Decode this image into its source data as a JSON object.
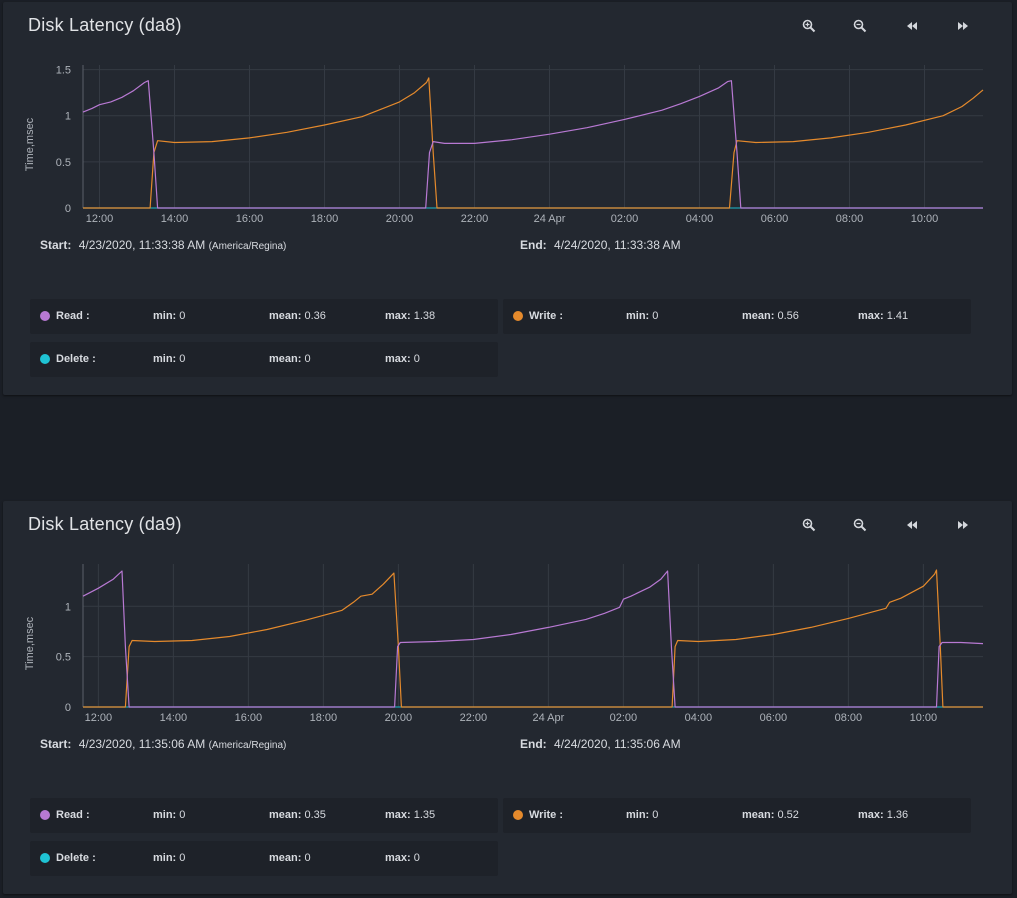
{
  "colors": {
    "read": "#b879d3",
    "write": "#e58a2c",
    "delete": "#1fc3d4",
    "delete_line": "#1e9fb0",
    "grid": "#343a43",
    "axis_text": "#aeb3ba"
  },
  "toolbar": {
    "icons": [
      "zoom-in-icon",
      "zoom-out-icon",
      "rewind-icon",
      "fast-forward-icon"
    ]
  },
  "stat_labels": {
    "min": "min:",
    "mean": "mean:",
    "max": "max:"
  },
  "panels": [
    {
      "title": "Disk Latency (da8)",
      "start_label": "Start:",
      "start_value": "4/23/2020, 11:33:38 AM",
      "timezone": "(America/Regina)",
      "end_label": "End:",
      "end_value": "4/24/2020, 11:33:38 AM",
      "legend": [
        {
          "name": "Read :",
          "color": "#b879d3",
          "min": "0",
          "mean": "0.36",
          "max": "1.38"
        },
        {
          "name": "Write :",
          "color": "#e58a2c",
          "min": "0",
          "mean": "0.56",
          "max": "1.41"
        },
        {
          "name": "Delete :",
          "color": "#1fc3d4",
          "min": "0",
          "mean": "0",
          "max": "0"
        }
      ]
    },
    {
      "title": "Disk Latency (da9)",
      "start_label": "Start:",
      "start_value": "4/23/2020, 11:35:06 AM",
      "timezone": "(America/Regina)",
      "end_label": "End:",
      "end_value": "4/24/2020, 11:35:06 AM",
      "legend": [
        {
          "name": "Read :",
          "color": "#b879d3",
          "min": "0",
          "mean": "0.35",
          "max": "1.35"
        },
        {
          "name": "Write :",
          "color": "#e58a2c",
          "min": "0",
          "mean": "0.52",
          "max": "1.36"
        },
        {
          "name": "Delete :",
          "color": "#1fc3d4",
          "min": "0",
          "mean": "0",
          "max": "0"
        }
      ]
    }
  ],
  "chart_data": [
    {
      "type": "line",
      "title": "Disk Latency (da8)",
      "ylabel": "Time,msec",
      "xlim": [
        11.56,
        35.56
      ],
      "ylim": [
        0,
        1.55
      ],
      "yticks": [
        0,
        0.5,
        1,
        1.5
      ],
      "ytick_labels": [
        "0",
        "0.5",
        "1",
        "1.5"
      ],
      "xticks": [
        12,
        14,
        16,
        18,
        20,
        22,
        24,
        26,
        28,
        30,
        32,
        34
      ],
      "xtick_labels": [
        "12:00",
        "14:00",
        "16:00",
        "18:00",
        "20:00",
        "22:00",
        "24 Apr",
        "02:00",
        "04:00",
        "06:00",
        "08:00",
        "10:00"
      ],
      "grid": true,
      "series": [
        {
          "name": "Read",
          "color": "#b879d3",
          "points": [
            [
              11.56,
              1.04
            ],
            [
              11.8,
              1.08
            ],
            [
              12.0,
              1.12
            ],
            [
              12.3,
              1.15
            ],
            [
              12.6,
              1.2
            ],
            [
              12.9,
              1.27
            ],
            [
              13.2,
              1.36
            ],
            [
              13.3,
              1.38
            ],
            [
              13.45,
              0.6
            ],
            [
              13.55,
              0
            ],
            [
              20.7,
              0
            ],
            [
              20.8,
              0.6
            ],
            [
              20.9,
              0.72
            ],
            [
              21.2,
              0.7
            ],
            [
              22.0,
              0.7
            ],
            [
              23.0,
              0.74
            ],
            [
              24.0,
              0.8
            ],
            [
              25.0,
              0.87
            ],
            [
              26.0,
              0.96
            ],
            [
              27.0,
              1.06
            ],
            [
              27.5,
              1.13
            ],
            [
              28.0,
              1.21
            ],
            [
              28.5,
              1.3
            ],
            [
              28.75,
              1.37
            ],
            [
              28.85,
              1.38
            ],
            [
              29.0,
              0.6
            ],
            [
              29.1,
              0
            ],
            [
              35.56,
              0
            ]
          ]
        },
        {
          "name": "Write",
          "color": "#e58a2c",
          "points": [
            [
              11.56,
              0
            ],
            [
              13.35,
              0
            ],
            [
              13.45,
              0.6
            ],
            [
              13.55,
              0.73
            ],
            [
              14.0,
              0.71
            ],
            [
              15.0,
              0.72
            ],
            [
              16.0,
              0.76
            ],
            [
              17.0,
              0.82
            ],
            [
              18.0,
              0.9
            ],
            [
              19.0,
              0.99
            ],
            [
              19.5,
              1.07
            ],
            [
              20.0,
              1.15
            ],
            [
              20.4,
              1.25
            ],
            [
              20.72,
              1.36
            ],
            [
              20.78,
              1.41
            ],
            [
              20.9,
              0.6
            ],
            [
              21.0,
              0
            ],
            [
              28.8,
              0
            ],
            [
              28.92,
              0.6
            ],
            [
              29.0,
              0.73
            ],
            [
              29.5,
              0.71
            ],
            [
              30.5,
              0.72
            ],
            [
              31.5,
              0.76
            ],
            [
              32.5,
              0.82
            ],
            [
              33.5,
              0.9
            ],
            [
              34.5,
              1.0
            ],
            [
              35.0,
              1.1
            ],
            [
              35.3,
              1.19
            ],
            [
              35.56,
              1.28
            ]
          ]
        },
        {
          "name": "Delete",
          "color": "#1fc3d4",
          "points": [
            [
              11.56,
              0
            ],
            [
              35.56,
              0
            ]
          ]
        }
      ]
    },
    {
      "type": "line",
      "title": "Disk Latency (da9)",
      "ylabel": "Time,msec",
      "xlim": [
        11.59,
        35.59
      ],
      "ylim": [
        0,
        1.42
      ],
      "yticks": [
        0,
        0.5,
        1
      ],
      "ytick_labels": [
        "0",
        "0.5",
        "1"
      ],
      "xticks": [
        12,
        14,
        16,
        18,
        20,
        22,
        24,
        26,
        28,
        30,
        32,
        34
      ],
      "xtick_labels": [
        "12:00",
        "14:00",
        "16:00",
        "18:00",
        "20:00",
        "22:00",
        "24 Apr",
        "02:00",
        "04:00",
        "06:00",
        "08:00",
        "10:00"
      ],
      "grid": true,
      "series": [
        {
          "name": "Read",
          "color": "#b879d3",
          "points": [
            [
              11.59,
              1.1
            ],
            [
              12.0,
              1.18
            ],
            [
              12.4,
              1.27
            ],
            [
              12.63,
              1.35
            ],
            [
              12.72,
              0.6
            ],
            [
              12.82,
              0
            ],
            [
              19.9,
              0
            ],
            [
              19.98,
              0.6
            ],
            [
              20.05,
              0.64
            ],
            [
              21.0,
              0.65
            ],
            [
              22.0,
              0.67
            ],
            [
              23.0,
              0.72
            ],
            [
              24.0,
              0.79
            ],
            [
              25.0,
              0.87
            ],
            [
              25.5,
              0.93
            ],
            [
              25.9,
              0.99
            ],
            [
              26.0,
              1.07
            ],
            [
              26.2,
              1.1
            ],
            [
              26.7,
              1.19
            ],
            [
              27.0,
              1.27
            ],
            [
              27.18,
              1.35
            ],
            [
              27.28,
              0.6
            ],
            [
              27.38,
              0
            ],
            [
              34.35,
              0
            ],
            [
              34.42,
              0.6
            ],
            [
              34.5,
              0.64
            ],
            [
              35.0,
              0.64
            ],
            [
              35.59,
              0.63
            ]
          ]
        },
        {
          "name": "Write",
          "color": "#e58a2c",
          "points": [
            [
              11.59,
              0
            ],
            [
              12.72,
              0
            ],
            [
              12.82,
              0.6
            ],
            [
              12.9,
              0.66
            ],
            [
              13.5,
              0.65
            ],
            [
              14.5,
              0.66
            ],
            [
              15.5,
              0.7
            ],
            [
              16.5,
              0.77
            ],
            [
              17.5,
              0.86
            ],
            [
              18.5,
              0.96
            ],
            [
              18.8,
              1.04
            ],
            [
              19.0,
              1.1
            ],
            [
              19.3,
              1.12
            ],
            [
              19.6,
              1.22
            ],
            [
              19.88,
              1.33
            ],
            [
              20.0,
              0.6
            ],
            [
              20.08,
              0
            ],
            [
              27.3,
              0
            ],
            [
              27.38,
              0.6
            ],
            [
              27.45,
              0.66
            ],
            [
              28.0,
              0.65
            ],
            [
              29.0,
              0.67
            ],
            [
              30.0,
              0.72
            ],
            [
              31.0,
              0.79
            ],
            [
              32.0,
              0.88
            ],
            [
              33.0,
              0.98
            ],
            [
              33.1,
              1.04
            ],
            [
              33.4,
              1.08
            ],
            [
              34.0,
              1.2
            ],
            [
              34.3,
              1.32
            ],
            [
              34.35,
              1.36
            ],
            [
              34.45,
              0.6
            ],
            [
              34.52,
              0
            ],
            [
              35.59,
              0
            ]
          ]
        },
        {
          "name": "Delete",
          "color": "#1fc3d4",
          "points": [
            [
              11.59,
              0
            ],
            [
              35.59,
              0
            ]
          ]
        }
      ]
    }
  ]
}
